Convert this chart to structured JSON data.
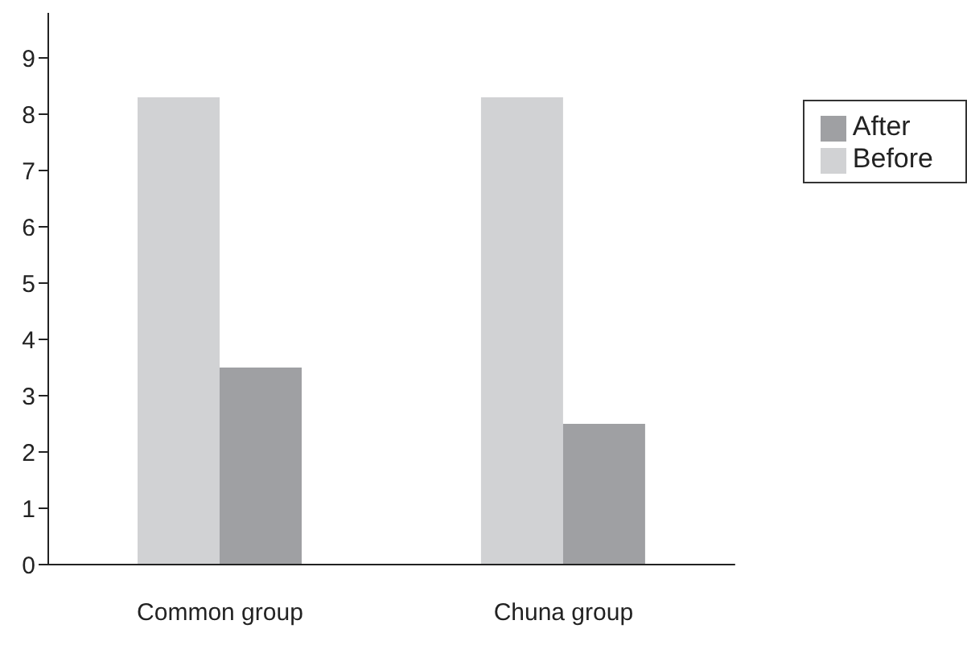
{
  "chart_data": {
    "type": "bar",
    "categories": [
      "Common group",
      "Chuna group"
    ],
    "series": [
      {
        "name": "Before",
        "color": "#d1d2d4",
        "values": [
          8.3,
          8.3
        ]
      },
      {
        "name": "After",
        "color": "#9fa0a3",
        "values": [
          3.5,
          2.5
        ]
      }
    ],
    "ylim": [
      0,
      9.8
    ],
    "yticks": [
      0,
      1,
      2,
      3,
      4,
      5,
      6,
      7,
      8,
      9
    ],
    "grid": false,
    "legend": "top right"
  }
}
